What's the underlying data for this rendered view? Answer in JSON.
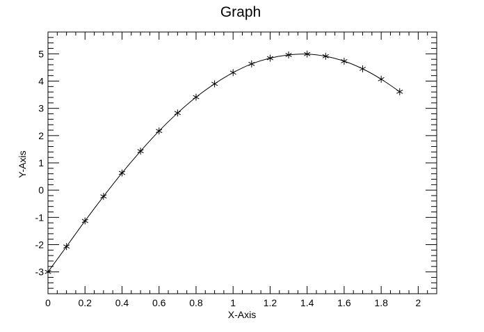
{
  "chart_data": {
    "type": "line",
    "title": "Graph",
    "xlabel": "X-Axis",
    "ylabel": "Y-Axis",
    "xlim": [
      0,
      2.1
    ],
    "ylim": [
      -3.8,
      5.8
    ],
    "x_ticks": [
      0,
      0.2,
      0.4,
      0.6,
      0.8,
      1,
      1.2,
      1.4,
      1.6,
      1.8,
      2
    ],
    "x_tick_labels": [
      "0",
      "0.2",
      "0.4",
      "0.6",
      "0.8",
      "1",
      "1.2",
      "1.4",
      "1.6",
      "1.8",
      "2"
    ],
    "y_ticks": [
      -3,
      -2,
      -1,
      0,
      1,
      2,
      3,
      4,
      5
    ],
    "y_tick_labels": [
      "-3",
      "-2",
      "-1",
      "0",
      "1",
      "2",
      "3",
      "4",
      "5"
    ],
    "grid": false,
    "marker": "asterisk",
    "line_style": "smooth",
    "series": [
      {
        "x": [
          0,
          0.1,
          0.2,
          0.3,
          0.4,
          0.5,
          0.6,
          0.7,
          0.8,
          0.9,
          1.0,
          1.1,
          1.2,
          1.3,
          1.4,
          1.5,
          1.6,
          1.7,
          1.8,
          1.9
        ],
        "y": [
          -3.0,
          -2.07,
          -1.13,
          -0.23,
          0.63,
          1.43,
          2.17,
          2.83,
          3.41,
          3.9,
          4.31,
          4.63,
          4.84,
          4.96,
          4.99,
          4.91,
          4.73,
          4.45,
          4.07,
          3.61
        ]
      }
    ],
    "colors": {
      "line": "#000000",
      "marker": "#000000",
      "frame": "#000000",
      "background": "#ffffff"
    }
  }
}
